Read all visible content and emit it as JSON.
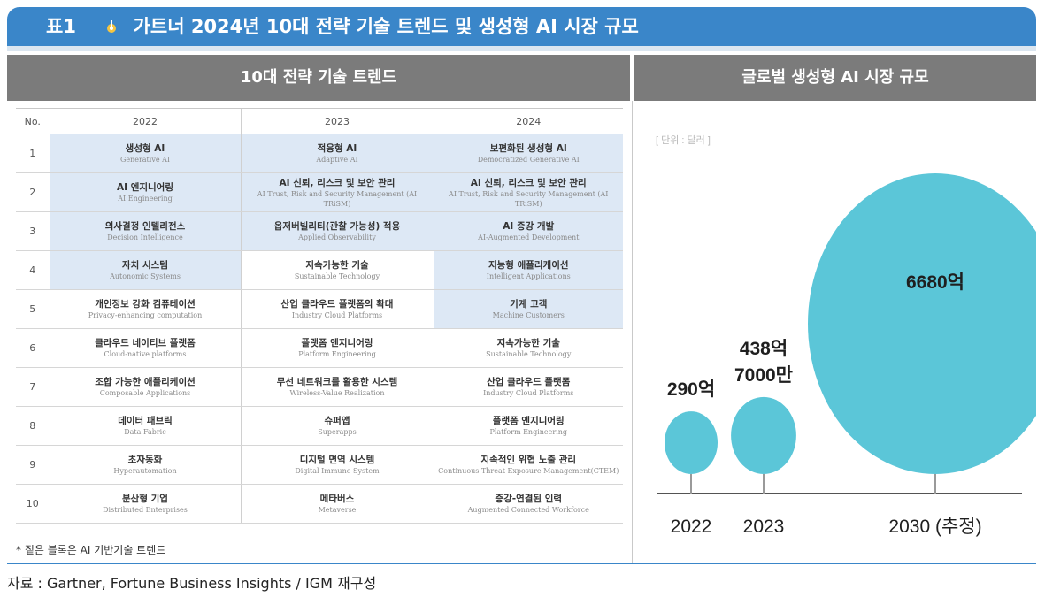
{
  "title": {
    "tag": "표1",
    "text": "가트너 2024년 10대 전략 기술 트렌드 및 생성형 AI 시장 규모"
  },
  "sections": {
    "left": "10대 전략 기술 트렌드",
    "right": "글로벌 생성형 AI 시장 규모"
  },
  "table": {
    "headers": [
      "No.",
      "2022",
      "2023",
      "2024"
    ],
    "rows": [
      {
        "no": "1",
        "cells": [
          {
            "ko": "생성형 AI",
            "en": "Generative AI",
            "highlight": true
          },
          {
            "ko": "적응형 AI",
            "en": "Adaptive AI",
            "highlight": true
          },
          {
            "ko": "보편화된 생성형 AI",
            "en": "Democratized Generative AI",
            "highlight": true
          }
        ]
      },
      {
        "no": "2",
        "cells": [
          {
            "ko": "AI 엔지니어링",
            "en": "AI Engineering",
            "highlight": true
          },
          {
            "ko": "AI 신뢰, 리스크 및 보안 관리",
            "en": "AI Trust, Risk and Security Management (AI TRiSM)",
            "highlight": true
          },
          {
            "ko": "AI 신뢰, 리스크 및 보안 관리",
            "en": "AI Trust, Risk and Security Management (AI TRiSM)",
            "highlight": true
          }
        ]
      },
      {
        "no": "3",
        "cells": [
          {
            "ko": "의사결정 인텔리전스",
            "en": "Decision Intelligence",
            "highlight": true
          },
          {
            "ko": "옵저버빌리티(관찰 가능성) 적용",
            "en": "Applied Observability",
            "highlight": true
          },
          {
            "ko": "AI 증강 개발",
            "en": "AI-Augmented Development",
            "highlight": true
          }
        ]
      },
      {
        "no": "4",
        "cells": [
          {
            "ko": "자치 시스템",
            "en": "Autonomic Systems",
            "highlight": true
          },
          {
            "ko": "지속가능한 기술",
            "en": "Sustainable Technology",
            "highlight": false
          },
          {
            "ko": "지능형 애플리케이션",
            "en": "Intelligent Applications",
            "highlight": true
          }
        ]
      },
      {
        "no": "5",
        "cells": [
          {
            "ko": "개인정보 강화 컴퓨테이션",
            "en": "Privacy-enhancing computation",
            "highlight": false
          },
          {
            "ko": "산업 클라우드 플랫폼의 확대",
            "en": "Industry Cloud Platforms",
            "highlight": false
          },
          {
            "ko": "기계 고객",
            "en": "Machine Customers",
            "highlight": true
          }
        ]
      },
      {
        "no": "6",
        "cells": [
          {
            "ko": "클라우드 네이티브 플랫폼",
            "en": "Cloud-native platforms",
            "highlight": false
          },
          {
            "ko": "플랫폼 엔지니어링",
            "en": "Platform Engineering",
            "highlight": false
          },
          {
            "ko": "지속가능한 기술",
            "en": "Sustainable Technology",
            "highlight": false
          }
        ]
      },
      {
        "no": "7",
        "cells": [
          {
            "ko": "조합 가능한 애플리케이션",
            "en": "Composable Applications",
            "highlight": false
          },
          {
            "ko": "무선 네트워크를 활용한 시스템",
            "en": "Wireless-Value Realization",
            "highlight": false
          },
          {
            "ko": "산업 클라우드 플랫폼",
            "en": "Industry Cloud Platforms",
            "highlight": false
          }
        ]
      },
      {
        "no": "8",
        "cells": [
          {
            "ko": "데이터 패브릭",
            "en": "Data Fabric",
            "highlight": false
          },
          {
            "ko": "슈퍼앱",
            "en": "Superapps",
            "highlight": false
          },
          {
            "ko": "플랫폼 엔지니어링",
            "en": "Platform Engineering",
            "highlight": false
          }
        ]
      },
      {
        "no": "9",
        "cells": [
          {
            "ko": "초자동화",
            "en": "Hyperautomation",
            "highlight": false
          },
          {
            "ko": "디지털 면역 시스템",
            "en": "Digital Immune System",
            "highlight": false
          },
          {
            "ko": "지속적인 위협 노출 관리",
            "en": "Continuous Threat Exposure Management(CTEM)",
            "highlight": false
          }
        ]
      },
      {
        "no": "10",
        "cells": [
          {
            "ko": "분산형 기업",
            "en": "Distributed Enterprises",
            "highlight": false
          },
          {
            "ko": "메타버스",
            "en": "Metaverse",
            "highlight": false
          },
          {
            "ko": "증강-연결된 인력",
            "en": "Augmented Connected Workforce",
            "highlight": false
          }
        ]
      }
    ]
  },
  "footnote": "* 짙은 블록은 AI 기반기술 트렌드",
  "source": "자료 : Gartner, Fortune Business Insights / IGM 재구성",
  "chart_data": {
    "type": "bubble",
    "unit_label": "[ 단위 : 달러 ]",
    "categories": [
      "2022",
      "2023",
      "2030 (추정)"
    ],
    "values": [
      29000000000,
      43870000000,
      668000000000
    ],
    "value_labels": [
      [
        "290억"
      ],
      [
        "438억",
        "7000만"
      ],
      [
        "6680억"
      ]
    ],
    "color": "#5bc6d8",
    "stem_color": "#9a9a9a"
  },
  "colors": {
    "banner": "#3a86c9",
    "section_header": "#7b7b7b",
    "highlight": "#dde8f5"
  }
}
